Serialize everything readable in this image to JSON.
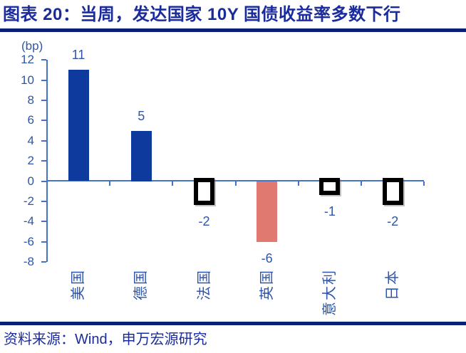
{
  "header": {
    "title": "图表 20：当周，发达国家 10Y 国债收益率多数下行"
  },
  "footer": {
    "source": "资料来源：Wind，申万宏源研究"
  },
  "colors": {
    "title_text": "#1A2B9E",
    "rule": "#0A1F78",
    "footer_text": "#1A2B9E",
    "bar_navy": "#0D3A9C",
    "bar_salmon": "#E07A70",
    "hollow_border": "#000000",
    "hollow_fill": "#FFFFFF",
    "axis_line": "#4472C4",
    "value_label": "#2F55A8"
  },
  "chart_data": {
    "type": "bar",
    "title": "",
    "xlabel": "",
    "ylabel": "(bp)",
    "unit_label": "(bp)",
    "categories": [
      "美国",
      "德国",
      "法国",
      "英国",
      "意大利",
      "日本"
    ],
    "values": [
      11,
      5,
      -2,
      -6,
      -1,
      -2
    ],
    "value_labels": [
      "11",
      "5",
      "-2",
      "-6",
      "-1",
      "-2"
    ],
    "bar_styles": [
      "navy",
      "navy",
      "hollow",
      "salmon",
      "hollow",
      "hollow"
    ],
    "ylim": [
      -8,
      12
    ],
    "yticks": [
      12,
      10,
      8,
      6,
      4,
      2,
      0,
      -2,
      -4,
      -6,
      -8
    ],
    "grid": false,
    "legend": false
  }
}
